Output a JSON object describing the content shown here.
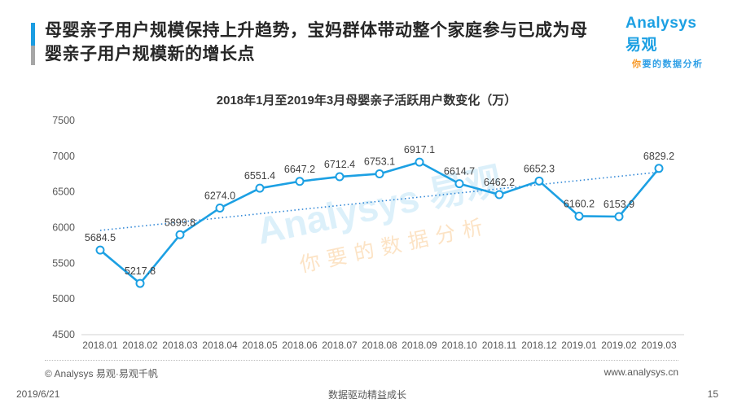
{
  "header": {
    "title_line1": "母婴亲子用户规模保持上升趋势，宝妈群体带动整个家庭参与已成为母",
    "title_line2": "婴亲子用户规模新的增长点",
    "logo_text": "Analysys 易观",
    "logo_tagline_first": "你",
    "logo_tagline_rest": "要的数据分析"
  },
  "chart_data": {
    "type": "line",
    "title": "2018年1月至2019年3月母婴亲子活跃用户数变化（万）",
    "categories": [
      "2018.01",
      "2018.02",
      "2018.03",
      "2018.04",
      "2018.05",
      "2018.06",
      "2018.07",
      "2018.08",
      "2018.09",
      "2018.10",
      "2018.11",
      "2018.12",
      "2019.01",
      "2019.02",
      "2019.03"
    ],
    "values": [
      5684.5,
      5217.8,
      5899.8,
      6274.0,
      6551.4,
      6647.2,
      6712.4,
      6753.1,
      6917.1,
      6614.7,
      6462.2,
      6652.3,
      6160.2,
      6153.9,
      6829.2
    ],
    "ylim": [
      4500,
      7500
    ],
    "ytick_step": 500,
    "grid": false,
    "legend": "none",
    "trendline": "linear-dotted",
    "line_color": "#1ca0e3",
    "marker_fill": "#ffffff",
    "trend_color": "#2e86d6",
    "axis_line_color": "#d9d9d9",
    "data_label_color": "#404040",
    "tick_label_color": "#595959"
  },
  "watermark": {
    "line1": "Analysys 易观",
    "line2": "你要的数据分析",
    "blue": "#1ca0e3",
    "orange": "#f7941e"
  },
  "footer": {
    "source": "© Analysys 易观·易观千帆",
    "website": "www.analysys.cn",
    "date": "2019/6/21",
    "slogan": "数据驱动精益成长",
    "page_number": "15"
  },
  "colors": {
    "accent_blue": "#1b9de2",
    "accent_gray": "#a6a6a6",
    "title_text": "#262626"
  }
}
